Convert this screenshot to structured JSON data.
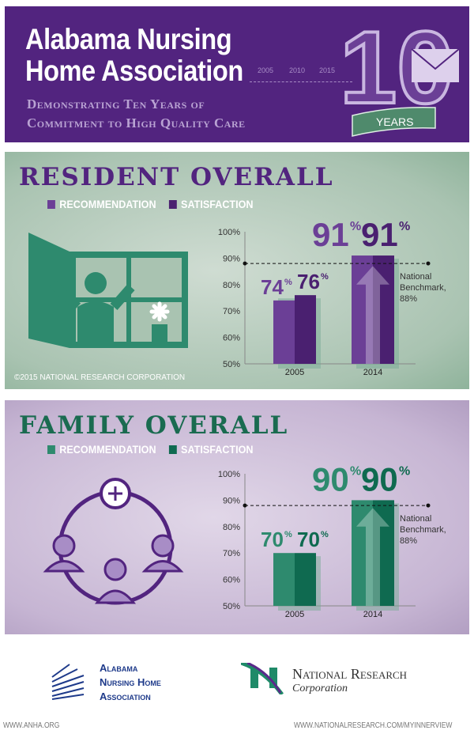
{
  "header": {
    "title_line1": "Alabama Nursing",
    "title_line2": "Home Association",
    "subtitle_line1": "Demonstrating Ten Years of",
    "subtitle_line2": "Commitment to High Quality Care",
    "timeline": [
      "2005",
      "2010",
      "2015"
    ],
    "badge_number": "10",
    "badge_ribbon": "YEARS"
  },
  "resident": {
    "heading": "RESIDENT OVERALL",
    "legend": [
      "RECOMMENDATION",
      "SATISFACTION"
    ],
    "copyright": "©2015 NATIONAL RESEARCH CORPORATION"
  },
  "family": {
    "heading": "FAMILY OVERALL",
    "legend": [
      "RECOMMENDATION",
      "SATISFACTION"
    ]
  },
  "colors": {
    "purple_dark": "#52247f",
    "resident_recommendation": "#6b3f96",
    "resident_satisfaction": "#4a2070",
    "family_recommendation": "#2e8a6e",
    "family_satisfaction": "#0f6a50"
  },
  "chart_data": [
    {
      "type": "bar",
      "categories": [
        "2005",
        "2014"
      ],
      "series": [
        {
          "name": "RECOMMENDATION",
          "values": [
            74,
            91
          ]
        },
        {
          "name": "SATISFACTION",
          "values": [
            76,
            91
          ]
        }
      ],
      "ylim": [
        50,
        100
      ],
      "yticks": [
        "50%",
        "60%",
        "70%",
        "80%",
        "90%",
        "100%"
      ],
      "benchmark": {
        "value": 88,
        "label": [
          "National",
          "Benchmark,",
          "88%"
        ]
      },
      "data_labels": [
        [
          "74",
          "91"
        ],
        [
          "76",
          "91"
        ]
      ]
    },
    {
      "type": "bar",
      "categories": [
        "2005",
        "2014"
      ],
      "series": [
        {
          "name": "RECOMMENDATION",
          "values": [
            70,
            90
          ]
        },
        {
          "name": "SATISFACTION",
          "values": [
            70,
            90
          ]
        }
      ],
      "ylim": [
        50,
        100
      ],
      "yticks": [
        "50%",
        "60%",
        "70%",
        "80%",
        "90%",
        "100%"
      ],
      "benchmark": {
        "value": 88,
        "label": [
          "National",
          "Benchmark,",
          "88%"
        ]
      },
      "data_labels": [
        [
          "70",
          "90"
        ],
        [
          "70",
          "90"
        ]
      ]
    }
  ],
  "footer": {
    "anha_logo": [
      "Alabama",
      "Nursing Home",
      "Association"
    ],
    "nrc_logo_name": "National Research",
    "nrc_logo_sub": "Corporation",
    "anha_url": "WWW.ANHA.ORG",
    "nrc_url": "WWW.NATIONALRESEARCH.COM/MYINNERVIEW"
  }
}
